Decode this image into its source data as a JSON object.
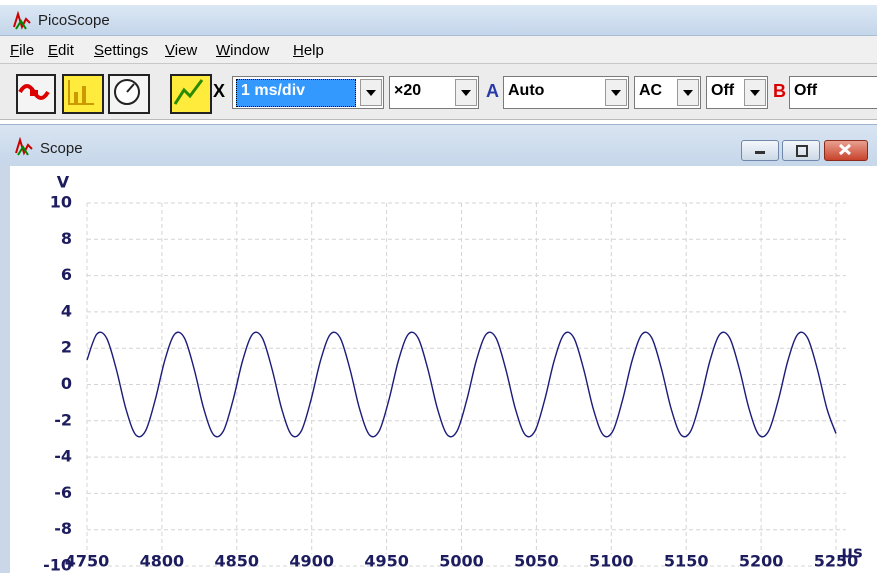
{
  "window": {
    "title": "PicoScope"
  },
  "menu": [
    "File",
    "Edit",
    "Settings",
    "View",
    "Window",
    "Help"
  ],
  "toolbar": {
    "timebase": "1 ms/div",
    "zoom": "×20",
    "channel_a_label": "A",
    "channel_a_range": "Auto",
    "coupling": "AC",
    "offset": "Off",
    "channel_b_label": "B",
    "channel_b_range": "Off",
    "x_label": "X"
  },
  "scope": {
    "title": "Scope"
  },
  "chart_data": {
    "type": "line",
    "y_unit": "V",
    "x_unit": "µs",
    "xlim": [
      4750,
      5250
    ],
    "ylim": [
      -10,
      10
    ],
    "xticks": [
      4750,
      4800,
      4850,
      4900,
      4950,
      5000,
      5050,
      5100,
      5150,
      5200,
      5250
    ],
    "yticks": [
      -10,
      -8,
      -6,
      -4,
      -2,
      0,
      2,
      4,
      6,
      8,
      10
    ],
    "grid": true,
    "series": [
      {
        "color": "#1c1c7a",
        "x": [
          4750,
          4756.5,
          4763,
          4769.5,
          4776,
          4782.5,
          4789,
          4795.5,
          4802,
          4808.5,
          4815,
          4821.5,
          4828,
          4834.5,
          4841,
          4847.5,
          4854,
          4860.5,
          4867,
          4873.5,
          4880,
          4886.5,
          4893,
          4899.5,
          4906,
          4912.5,
          4919,
          4925.5,
          4932,
          4938.5,
          4945,
          4951.5,
          4958,
          4964.5,
          4971,
          4977.5,
          4984,
          4990.5,
          4997,
          5003.5,
          5010,
          5016.5,
          5023,
          5029.5,
          5036,
          5042.5,
          5049,
          5055.5,
          5062,
          5068.5,
          5075,
          5081.5,
          5088,
          5094.5,
          5101,
          5107.5,
          5114,
          5120.5,
          5127,
          5133.5,
          5140,
          5146.5,
          5153,
          5159.5,
          5166,
          5172.5,
          5179,
          5185.5,
          5192,
          5198.5,
          5205,
          5211.5,
          5218,
          5224.5,
          5231,
          5237.5,
          5244,
          5250
        ],
        "values": [
          1.35,
          2.77,
          2.57,
          0.86,
          -1.35,
          -2.77,
          -2.57,
          -0.86,
          1.35,
          2.77,
          2.57,
          0.86,
          -1.35,
          -2.77,
          -2.57,
          -0.86,
          1.35,
          2.77,
          2.57,
          0.86,
          -1.35,
          -2.77,
          -2.57,
          -0.86,
          1.35,
          2.77,
          2.57,
          0.86,
          -1.35,
          -2.77,
          -2.57,
          -0.86,
          1.35,
          2.77,
          2.57,
          0.86,
          -1.35,
          -2.77,
          -2.57,
          -0.86,
          1.35,
          2.77,
          2.57,
          0.86,
          -1.35,
          -2.77,
          -2.57,
          -0.86,
          1.35,
          2.77,
          2.57,
          0.86,
          -1.35,
          -2.77,
          -2.57,
          -0.86,
          1.35,
          2.77,
          2.57,
          0.86,
          -1.35,
          -2.77,
          -2.57,
          -0.86,
          1.35,
          2.77,
          2.57,
          0.86,
          -1.35,
          -2.77,
          -2.57,
          -0.86,
          1.35,
          2.77,
          2.57,
          0.86,
          -1.35,
          -2.7
        ]
      }
    ]
  }
}
